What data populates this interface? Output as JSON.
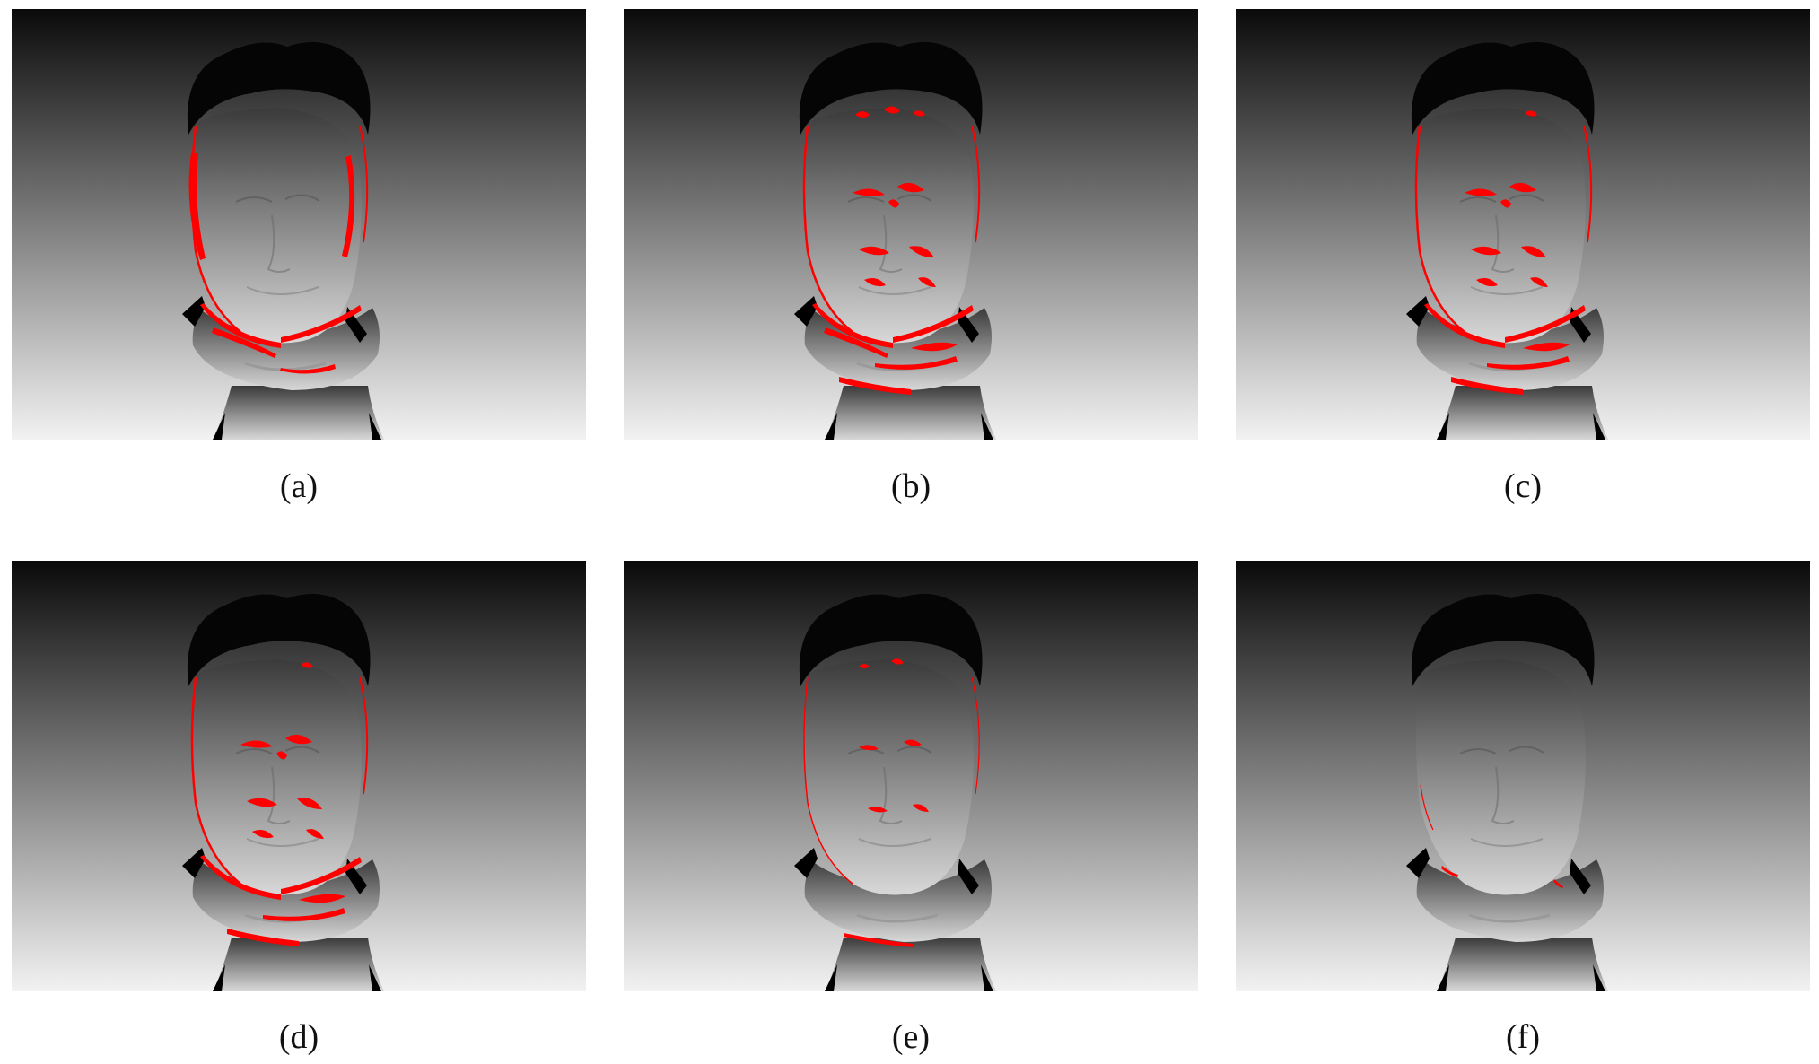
{
  "figure": {
    "panels": [
      {
        "caption": "(a)",
        "error_level": "heavy-edges"
      },
      {
        "caption": "(b)",
        "error_level": "heavy-interior"
      },
      {
        "caption": "(c)",
        "error_level": "moderate"
      },
      {
        "caption": "(d)",
        "error_level": "moderate"
      },
      {
        "caption": "(e)",
        "error_level": "light"
      },
      {
        "caption": "(f)",
        "error_level": "minimal"
      }
    ],
    "colors": {
      "background_top": "#0a0a0a",
      "background_bottom": "#f2f2f2",
      "face_top": "#3a3a3a",
      "face_bottom": "#d8d8d8",
      "hair": "#050505",
      "error_mark": "#ff0000"
    }
  }
}
